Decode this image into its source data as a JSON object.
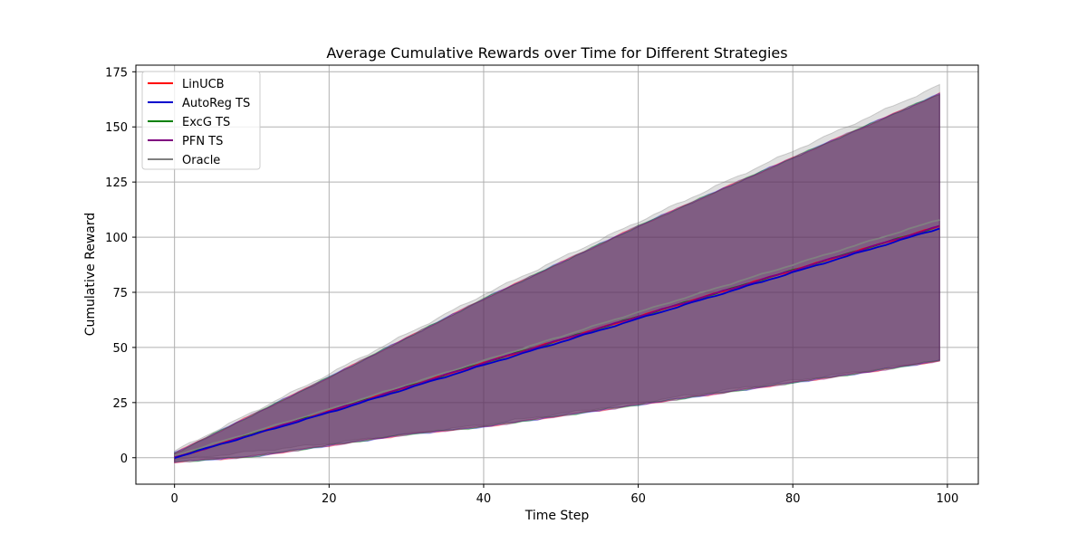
{
  "chart_data": {
    "type": "line",
    "title": "Average Cumulative Rewards over Time for Different Strategies",
    "xlabel": "Time Step",
    "ylabel": "Cumulative Reward",
    "xlim": [
      -5,
      104
    ],
    "ylim": [
      -12,
      178
    ],
    "xticks": [
      0,
      20,
      40,
      60,
      80,
      100
    ],
    "yticks": [
      0,
      25,
      50,
      75,
      100,
      125,
      150,
      175
    ],
    "grid": true,
    "legend_position": "top-left",
    "x_range": [
      0,
      99
    ],
    "series": [
      {
        "name": "LinUCB",
        "color": "#ff0000",
        "mean": [
          [
            0,
            0
          ],
          [
            20,
            21
          ],
          [
            40,
            43
          ],
          [
            60,
            64
          ],
          [
            80,
            85
          ],
          [
            99,
            105
          ]
        ],
        "band_lower": [
          [
            0,
            -2
          ],
          [
            10,
            0.5
          ],
          [
            20,
            5.5
          ],
          [
            30,
            10.5
          ],
          [
            40,
            14
          ],
          [
            50,
            19
          ],
          [
            60,
            24
          ],
          [
            70,
            29
          ],
          [
            80,
            34
          ],
          [
            90,
            39
          ],
          [
            99,
            44
          ]
        ],
        "band_upper": [
          [
            0,
            2
          ],
          [
            20,
            36.5
          ],
          [
            40,
            72
          ],
          [
            60,
            105
          ],
          [
            80,
            136
          ],
          [
            99,
            165
          ]
        ]
      },
      {
        "name": "AutoReg TS",
        "color": "#0000cc",
        "mean": [
          [
            0,
            0
          ],
          [
            20,
            20.5
          ],
          [
            40,
            42
          ],
          [
            60,
            63
          ],
          [
            80,
            84
          ],
          [
            99,
            104
          ]
        ],
        "band_lower": [
          [
            0,
            -2
          ],
          [
            10,
            0.5
          ],
          [
            20,
            5.5
          ],
          [
            30,
            10.5
          ],
          [
            40,
            14
          ],
          [
            50,
            19
          ],
          [
            60,
            24
          ],
          [
            70,
            29
          ],
          [
            80,
            34
          ],
          [
            90,
            39
          ],
          [
            99,
            44
          ]
        ],
        "band_upper": [
          [
            0,
            2
          ],
          [
            20,
            36.5
          ],
          [
            40,
            72
          ],
          [
            60,
            105
          ],
          [
            80,
            136
          ],
          [
            99,
            165
          ]
        ]
      },
      {
        "name": "ExcG TS",
        "color": "#008000",
        "mean": [
          [
            0,
            0
          ],
          [
            20,
            21
          ],
          [
            40,
            43
          ],
          [
            60,
            64
          ],
          [
            80,
            85
          ],
          [
            99,
            105
          ]
        ],
        "band_lower": [
          [
            0,
            -2
          ],
          [
            10,
            0.5
          ],
          [
            20,
            5.5
          ],
          [
            30,
            10.5
          ],
          [
            40,
            14
          ],
          [
            50,
            19
          ],
          [
            60,
            24
          ],
          [
            70,
            29
          ],
          [
            80,
            34
          ],
          [
            90,
            39
          ],
          [
            99,
            44
          ]
        ],
        "band_upper": [
          [
            0,
            2
          ],
          [
            20,
            36.5
          ],
          [
            40,
            72
          ],
          [
            60,
            105
          ],
          [
            80,
            136
          ],
          [
            99,
            165
          ]
        ]
      },
      {
        "name": "PFN TS",
        "color": "#800080",
        "mean": [
          [
            0,
            0
          ],
          [
            20,
            21
          ],
          [
            40,
            43
          ],
          [
            60,
            64
          ],
          [
            80,
            85
          ],
          [
            99,
            105
          ]
        ],
        "band_lower": [
          [
            0,
            -2
          ],
          [
            10,
            0.5
          ],
          [
            20,
            5.5
          ],
          [
            30,
            10.5
          ],
          [
            40,
            14
          ],
          [
            50,
            19
          ],
          [
            60,
            24
          ],
          [
            70,
            29
          ],
          [
            80,
            34
          ],
          [
            90,
            39
          ],
          [
            99,
            44
          ]
        ],
        "band_upper": [
          [
            0,
            2
          ],
          [
            20,
            36.5
          ],
          [
            40,
            72
          ],
          [
            60,
            105
          ],
          [
            80,
            136
          ],
          [
            99,
            165
          ]
        ]
      },
      {
        "name": "Oracle",
        "color": "#808080",
        "mean": [
          [
            0,
            1
          ],
          [
            20,
            22
          ],
          [
            40,
            44
          ],
          [
            60,
            66
          ],
          [
            80,
            87.5
          ],
          [
            99,
            108
          ]
        ],
        "band_lower": [
          [
            0,
            -1
          ],
          [
            20,
            6.5
          ],
          [
            40,
            15
          ],
          [
            60,
            25
          ],
          [
            80,
            35
          ],
          [
            99,
            44
          ]
        ],
        "band_upper": [
          [
            0,
            3
          ],
          [
            20,
            38
          ],
          [
            40,
            74
          ],
          [
            60,
            107
          ],
          [
            80,
            139
          ],
          [
            99,
            169
          ]
        ]
      }
    ]
  }
}
